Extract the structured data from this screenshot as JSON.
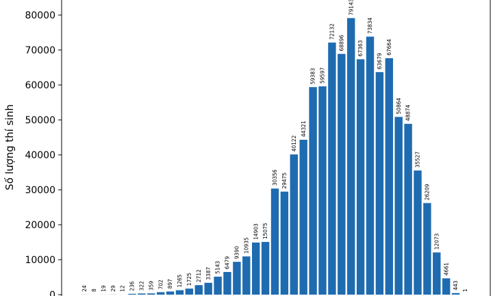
{
  "chart_data": {
    "type": "bar",
    "title": "",
    "xlabel": "",
    "ylabel": "Số lượng thí sinh",
    "ylim": [
      0,
      85000
    ],
    "yticks": [
      0,
      10000,
      20000,
      30000,
      40000,
      50000,
      60000,
      70000,
      80000
    ],
    "color": "#1f6bb0",
    "values": [
      24,
      8,
      19,
      29,
      12,
      236,
      322,
      359,
      702,
      897,
      1265,
      1725,
      2712,
      3387,
      5143,
      6479,
      9390,
      10935,
      14903,
      15075,
      30356,
      29475,
      40122,
      44321,
      59383,
      59597,
      72132,
      68896,
      79143,
      67363,
      73834,
      63679,
      67664,
      50864,
      48874,
      35527,
      26209,
      12073,
      4661,
      443,
      1
    ]
  }
}
